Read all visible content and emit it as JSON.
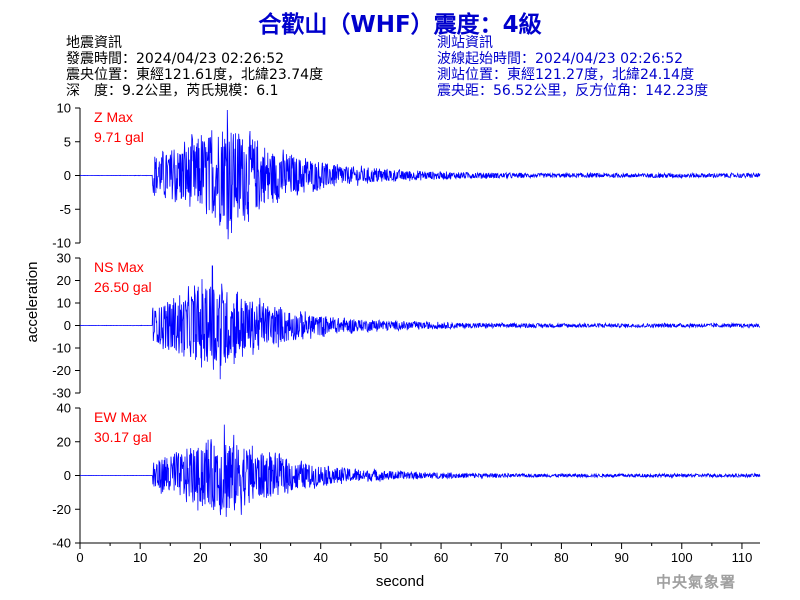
{
  "title": "合歡山（WHF）震度：4級",
  "quake_info": {
    "heading": "地震資訊",
    "time": "發震時間：2024/04/23 02:26:52",
    "epicenter": "震央位置：東經121.61度，北緯23.74度",
    "depth_magnitude": "深　度：9.2公里，芮氏規模：6.1"
  },
  "station_info": {
    "heading": "測站資訊",
    "wave_start": "波線起始時間：2024/04/23 02:26:52",
    "location": "測站位置：東經121.27度，北緯24.14度",
    "distance": "震央距：56.52公里，反方位角：142.23度"
  },
  "agency": "中央氣象署",
  "colors": {
    "title": "#0000cc",
    "trace": "#0000ff",
    "label": "#ff0000",
    "axis": "#000000",
    "agency": "#a0a0a0"
  },
  "chart_data": {
    "type": "line",
    "xlabel": "second",
    "ylabel": "acceleration",
    "xlim": [
      0,
      113
    ],
    "x_ticks": [
      0,
      10,
      20,
      30,
      40,
      50,
      60,
      70,
      80,
      90,
      100,
      110
    ],
    "grid": false,
    "wave_onset_s": 12,
    "series": [
      {
        "name": "Z Max",
        "max_text": "9.71 gal",
        "max": 9.71,
        "ylim": [
          -10,
          10
        ],
        "y_ticks": [
          10,
          5,
          0,
          -5,
          -10
        ],
        "peak_time_s": 24.5
      },
      {
        "name": "NS Max",
        "max_text": "26.50 gal",
        "max": 26.5,
        "ylim": [
          -30,
          30
        ],
        "y_ticks": [
          30,
          20,
          10,
          0,
          -10,
          -20,
          -30
        ],
        "peak_time_s": 22
      },
      {
        "name": "EW Max",
        "max_text": "30.17 gal",
        "max": 30.17,
        "ylim": [
          -40,
          40
        ],
        "y_ticks": [
          40,
          20,
          0,
          -20,
          -40
        ],
        "peak_time_s": 24
      }
    ]
  }
}
